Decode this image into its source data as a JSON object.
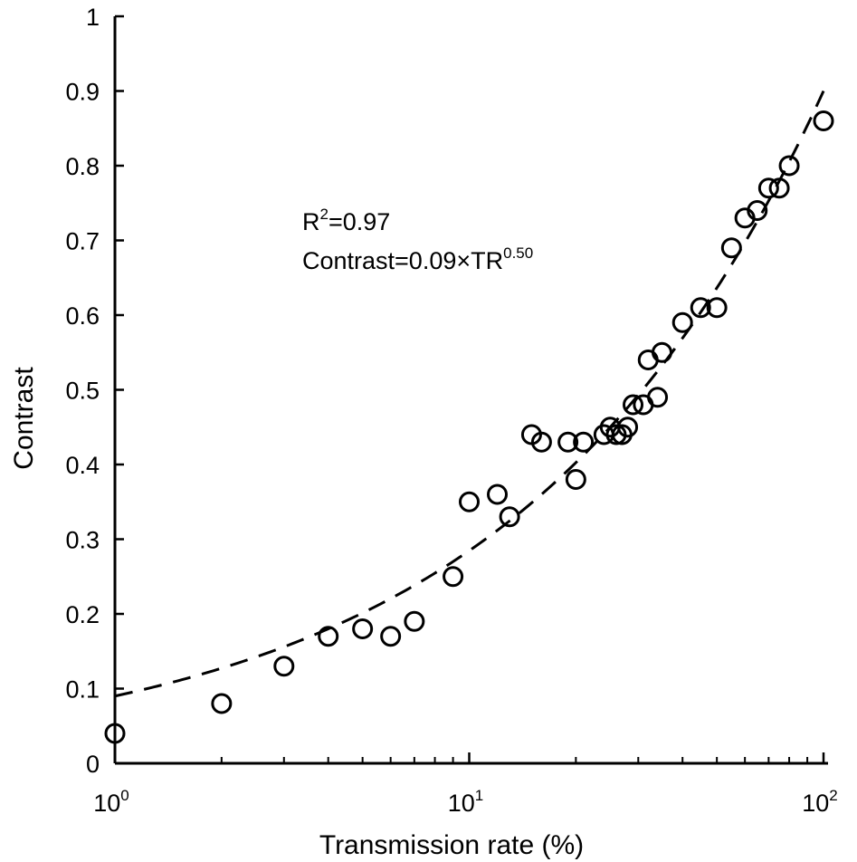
{
  "chart_data": {
    "type": "scatter",
    "title": "",
    "xlabel": "Transmission rate (%)",
    "ylabel": "Contrast",
    "x_scale": "log",
    "xlim": [
      1,
      100
    ],
    "ylim": [
      0,
      1
    ],
    "grid": false,
    "legend": "none",
    "x_ticks": [
      {
        "base": "10",
        "exp": "0",
        "value": 1
      },
      {
        "base": "10",
        "exp": "1",
        "value": 10
      },
      {
        "base": "10",
        "exp": "2",
        "value": 100
      }
    ],
    "y_ticks": [
      {
        "label": "0",
        "value": 0
      },
      {
        "label": "0.1",
        "value": 0.1
      },
      {
        "label": "0.2",
        "value": 0.2
      },
      {
        "label": "0.3",
        "value": 0.3
      },
      {
        "label": "0.4",
        "value": 0.4
      },
      {
        "label": "0.5",
        "value": 0.5
      },
      {
        "label": "0.6",
        "value": 0.6
      },
      {
        "label": "0.7",
        "value": 0.7
      },
      {
        "label": "0.8",
        "value": 0.8
      },
      {
        "label": "0.9",
        "value": 0.9
      },
      {
        "label": "1",
        "value": 1
      }
    ],
    "points": [
      {
        "x": 1.0,
        "y": 0.04
      },
      {
        "x": 2.0,
        "y": 0.08
      },
      {
        "x": 3.0,
        "y": 0.13
      },
      {
        "x": 4.0,
        "y": 0.17
      },
      {
        "x": 5.0,
        "y": 0.18
      },
      {
        "x": 6.0,
        "y": 0.17
      },
      {
        "x": 7.0,
        "y": 0.19
      },
      {
        "x": 9.0,
        "y": 0.25
      },
      {
        "x": 10.0,
        "y": 0.35
      },
      {
        "x": 12.0,
        "y": 0.36
      },
      {
        "x": 13.0,
        "y": 0.33
      },
      {
        "x": 15.0,
        "y": 0.44
      },
      {
        "x": 16.0,
        "y": 0.43
      },
      {
        "x": 19.0,
        "y": 0.43
      },
      {
        "x": 20.0,
        "y": 0.38
      },
      {
        "x": 21.0,
        "y": 0.43
      },
      {
        "x": 24.0,
        "y": 0.44
      },
      {
        "x": 25.0,
        "y": 0.45
      },
      {
        "x": 26.0,
        "y": 0.44
      },
      {
        "x": 27.0,
        "y": 0.44
      },
      {
        "x": 28.0,
        "y": 0.45
      },
      {
        "x": 29.0,
        "y": 0.48
      },
      {
        "x": 31.0,
        "y": 0.48
      },
      {
        "x": 32.0,
        "y": 0.54
      },
      {
        "x": 34.0,
        "y": 0.49
      },
      {
        "x": 35.0,
        "y": 0.55
      },
      {
        "x": 40.0,
        "y": 0.59
      },
      {
        "x": 45.0,
        "y": 0.61
      },
      {
        "x": 50.0,
        "y": 0.61
      },
      {
        "x": 55.0,
        "y": 0.69
      },
      {
        "x": 60.0,
        "y": 0.73
      },
      {
        "x": 65.0,
        "y": 0.74
      },
      {
        "x": 70.0,
        "y": 0.77
      },
      {
        "x": 75.0,
        "y": 0.77
      },
      {
        "x": 80.0,
        "y": 0.8
      },
      {
        "x": 100.0,
        "y": 0.86
      }
    ],
    "fit": {
      "coefficient": 0.09,
      "exponent": 0.5,
      "style": "dashed"
    },
    "annotations": {
      "r2_base": "R",
      "r2_sup": "2",
      "r2_value": "=0.97",
      "eq_text": "Contrast=0.09×TR",
      "eq_sup": "0.50"
    }
  }
}
